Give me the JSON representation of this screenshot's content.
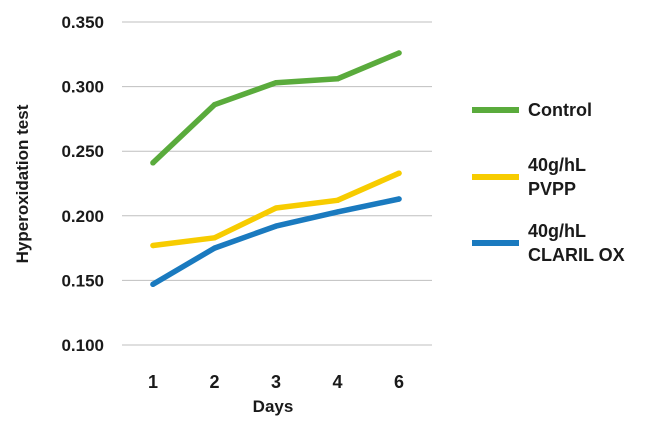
{
  "chart_data": {
    "type": "line",
    "title": "",
    "xlabel": "Days",
    "ylabel": "Hyperoxidation test",
    "categories": [
      "1",
      "2",
      "3",
      "4",
      "6"
    ],
    "ylim": [
      0.1,
      0.35
    ],
    "yticks": [
      "0.350",
      "0.300",
      "0.250",
      "0.200",
      "0.150",
      "0.100"
    ],
    "yticks_values": [
      0.35,
      0.3,
      0.25,
      0.2,
      0.15,
      0.1
    ],
    "grid": true,
    "legend_position": "right",
    "series": [
      {
        "name": "Control",
        "label_lines": [
          "Control"
        ],
        "color": "#5aab3c",
        "values": [
          0.241,
          0.286,
          0.303,
          0.306,
          0.326
        ]
      },
      {
        "name": "40g/hL PVPP",
        "label_lines": [
          "40g/hL",
          "PVPP"
        ],
        "color": "#f7cc00",
        "values": [
          0.177,
          0.183,
          0.206,
          0.212,
          0.233
        ]
      },
      {
        "name": "40g/hL CLARIL OX",
        "label_lines": [
          "40g/hL",
          "CLARIL OX"
        ],
        "color": "#1a7abf",
        "values": [
          0.147,
          0.175,
          0.192,
          0.203,
          0.213
        ]
      }
    ]
  }
}
